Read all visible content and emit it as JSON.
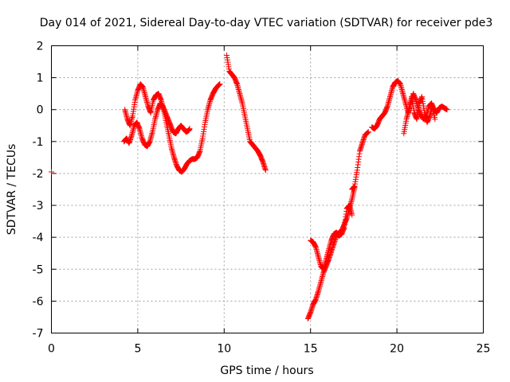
{
  "chart_data": {
    "type": "scatter",
    "title": "Day 014 of 2021, Sidereal Day-to-day VTEC variation (SDTVAR) for receiver pde3",
    "xlabel": "GPS time / hours",
    "ylabel": "SDTVAR / TECUs",
    "xlim": [
      0,
      25
    ],
    "ylim": [
      -7,
      2
    ],
    "xticks": [
      0,
      5,
      10,
      15,
      20,
      25
    ],
    "yticks": [
      2,
      1,
      0,
      -1,
      -2,
      -3,
      -4,
      -5,
      -6,
      -7
    ],
    "grid": true,
    "marker": "+",
    "color": "#ff0000",
    "series": [
      {
        "name": "SDTVAR",
        "segments": [
          {
            "x": [
              0.0
            ],
            "y": [
              -1.95
            ]
          },
          {
            "x": [
              4.25,
              4.4,
              4.55,
              4.7,
              4.85,
              5.0,
              5.15,
              5.3,
              5.45,
              5.6,
              5.75,
              5.9,
              6.05,
              6.2,
              6.35,
              6.5,
              6.65,
              6.8,
              6.95,
              7.1,
              7.25,
              7.4,
              7.55,
              7.7,
              7.85,
              8.0,
              8.15,
              8.3,
              8.45,
              8.6,
              8.75,
              8.9,
              9.05,
              9.2,
              9.35,
              9.5,
              9.65,
              9.75
            ],
            "y": [
              0.0,
              -0.3,
              -0.5,
              -0.2,
              0.3,
              0.6,
              0.8,
              0.7,
              0.4,
              0.1,
              -0.1,
              0.3,
              0.45,
              0.5,
              0.3,
              0.0,
              -0.4,
              -0.8,
              -1.2,
              -1.5,
              -1.75,
              -1.9,
              -1.95,
              -1.85,
              -1.7,
              -1.6,
              -1.55,
              -1.55,
              -1.5,
              -1.3,
              -0.9,
              -0.4,
              0.0,
              0.3,
              0.5,
              0.65,
              0.75,
              0.8
            ]
          },
          {
            "x": [
              4.2,
              4.35,
              4.5,
              4.65,
              4.8,
              4.95,
              5.1,
              5.25,
              5.4,
              5.55,
              5.7,
              5.85,
              6.0,
              6.15,
              6.3,
              6.45,
              6.6,
              6.75,
              6.9,
              7.05,
              7.2,
              7.35,
              7.5,
              7.65,
              7.8,
              7.95,
              8.0
            ],
            "y": [
              -1.0,
              -0.9,
              -1.05,
              -0.8,
              -0.5,
              -0.4,
              -0.6,
              -0.9,
              -1.1,
              -1.15,
              -1.0,
              -0.7,
              -0.3,
              0.0,
              0.2,
              0.1,
              -0.1,
              -0.3,
              -0.5,
              -0.7,
              -0.75,
              -0.6,
              -0.5,
              -0.6,
              -0.7,
              -0.65,
              -0.6
            ]
          },
          {
            "x": [
              10.15,
              10.3,
              10.45,
              10.6,
              10.75,
              10.9,
              11.05,
              11.2,
              11.35,
              11.5,
              11.65,
              11.8,
              11.95,
              12.1,
              12.25,
              12.4
            ],
            "y": [
              1.7,
              1.2,
              1.1,
              1.0,
              0.8,
              0.5,
              0.2,
              -0.2,
              -0.6,
              -1.0,
              -1.1,
              -1.2,
              -1.3,
              -1.45,
              -1.65,
              -1.9
            ]
          },
          {
            "x": [
              14.85,
              15.0,
              15.15,
              15.3,
              15.45,
              15.6,
              15.75,
              15.9,
              16.05,
              16.2,
              16.35,
              16.5,
              16.65,
              16.8,
              16.95,
              17.1,
              17.25,
              17.4,
              17.55
            ],
            "y": [
              -6.55,
              -6.35,
              -6.1,
              -5.95,
              -5.7,
              -5.4,
              -5.1,
              -4.9,
              -4.7,
              -4.45,
              -4.2,
              -3.95,
              -3.85,
              -3.8,
              -3.6,
              -3.4,
              -3.1,
              -2.8,
              -2.45
            ]
          },
          {
            "x": [
              15.0,
              15.15,
              15.3,
              15.45,
              15.6,
              15.75,
              15.9,
              16.05,
              16.2,
              16.35,
              16.5,
              16.65,
              16.8,
              16.95,
              17.1,
              17.25,
              17.4
            ],
            "y": [
              -4.1,
              -4.15,
              -4.3,
              -4.6,
              -4.9,
              -5.0,
              -4.7,
              -4.4,
              -4.1,
              -3.9,
              -3.85,
              -3.95,
              -3.9,
              -3.7,
              -3.1,
              -3.0,
              -3.3
            ]
          },
          {
            "x": [
              17.4,
              17.55,
              17.7,
              17.85,
              18.0,
              18.15,
              18.35
            ],
            "y": [
              -2.5,
              -2.4,
              -1.9,
              -1.3,
              -1.05,
              -0.8,
              -0.7
            ]
          },
          {
            "x": [
              18.55,
              18.7,
              18.85,
              19.0,
              19.15,
              19.3,
              19.45,
              19.6,
              19.75,
              19.9,
              20.05,
              20.2,
              20.35,
              20.5,
              20.65,
              20.8,
              20.95,
              21.1,
              21.25,
              21.4,
              21.55,
              21.7,
              21.85,
              22.0,
              22.15,
              22.3,
              22.45,
              22.6,
              22.75,
              22.9
            ],
            "y": [
              -0.55,
              -0.6,
              -0.5,
              -0.3,
              -0.2,
              -0.1,
              0.1,
              0.4,
              0.7,
              0.85,
              0.9,
              0.8,
              0.5,
              0.2,
              -0.1,
              0.2,
              0.5,
              0.3,
              0.0,
              -0.2,
              -0.3,
              -0.2,
              0.1,
              0.2,
              0.0,
              -0.1,
              0.05,
              0.1,
              0.05,
              0.0
            ]
          },
          {
            "x": [
              20.4,
              20.55,
              20.7,
              20.85,
              21.0,
              21.15,
              21.3,
              21.45,
              21.6,
              21.75,
              21.9,
              22.05,
              22.2
            ],
            "y": [
              -0.75,
              -0.3,
              0.0,
              0.4,
              -0.1,
              -0.3,
              0.2,
              0.4,
              -0.1,
              -0.4,
              -0.2,
              0.1,
              -0.3
            ]
          }
        ]
      }
    ]
  }
}
